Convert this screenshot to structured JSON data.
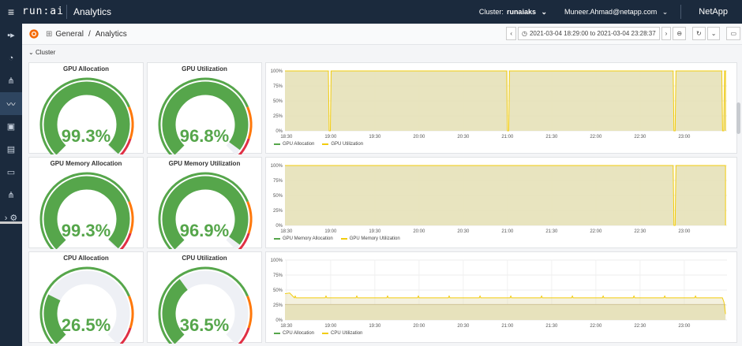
{
  "topbar": {
    "menu_icon": "hamburger-icon",
    "logo": "run:ai",
    "app_title": "Analytics",
    "cluster_label": "Cluster:",
    "cluster_value": "runaiaks",
    "user": "Muneer.Ahmad@netapp.com",
    "brand": "NetApp"
  },
  "sidebar": {
    "items": [
      {
        "icon": "grid-icon"
      },
      {
        "icon": "speedometer-icon"
      },
      {
        "icon": "hierarchy-icon"
      },
      {
        "icon": "analytics-icon"
      },
      {
        "icon": "briefcase-icon"
      },
      {
        "icon": "document-icon"
      },
      {
        "icon": "monitor-icon"
      },
      {
        "icon": "network-icon"
      },
      {
        "icon": "settings-icon"
      }
    ]
  },
  "subbar": {
    "crumb_root": "General",
    "crumb_sep": "/",
    "crumb_page": "Analytics",
    "time_range": "2021-03-04 18:29:00 to 2021-03-04 23:28:37"
  },
  "section_title": "Cluster",
  "gauges": [
    {
      "title": "GPU Allocation",
      "value": "99.3%",
      "fraction": 0.993
    },
    {
      "title": "GPU Utilization",
      "value": "96.8%",
      "fraction": 0.968
    },
    {
      "title": "GPU Memory Allocation",
      "value": "99.3%",
      "fraction": 0.993
    },
    {
      "title": "GPU Memory Utilization",
      "value": "96.9%",
      "fraction": 0.969
    },
    {
      "title": "CPU Allocation",
      "value": "26.5%",
      "fraction": 0.265
    },
    {
      "title": "CPU Utilization",
      "value": "36.5%",
      "fraction": 0.365
    }
  ],
  "colors": {
    "green": "#56a64b",
    "orange": "#ff780a",
    "red": "#e02f44",
    "fill": "#e6e1b8",
    "line_yellow": "#f2cc0c",
    "track": "#eef0f5"
  },
  "chart_data": [
    {
      "type": "area",
      "yticks": [
        "100%",
        "75%",
        "50%",
        "25%",
        "0%"
      ],
      "ylim": [
        0,
        100
      ],
      "xticks": [
        "18:30",
        "19:00",
        "19:30",
        "20:00",
        "20:30",
        "21:00",
        "21:30",
        "22:00",
        "22:30",
        "23:00"
      ],
      "series": [
        {
          "name": "GPU Allocation",
          "color": "#56a64b"
        },
        {
          "name": "GPU Utilization",
          "color": "#f2cc0c"
        }
      ],
      "level": 100,
      "dips": [
        "18:59",
        "21:00",
        "22:53",
        "23:26"
      ]
    },
    {
      "type": "area",
      "yticks": [
        "100%",
        "75%",
        "50%",
        "25%",
        "0%"
      ],
      "ylim": [
        0,
        100
      ],
      "xticks": [
        "18:30",
        "19:00",
        "19:30",
        "20:00",
        "20:30",
        "21:00",
        "21:30",
        "22:00",
        "22:30",
        "23:00"
      ],
      "series": [
        {
          "name": "GPU Memory Allocation",
          "color": "#56a64b"
        },
        {
          "name": "GPU Memory Utilization",
          "color": "#f2cc0c"
        }
      ],
      "level": 100,
      "dips": [
        "22:53"
      ]
    },
    {
      "type": "area",
      "yticks": [
        "100%",
        "75%",
        "50%",
        "25%",
        "0%"
      ],
      "ylim": [
        0,
        100
      ],
      "xticks": [
        "18:30",
        "19:00",
        "19:30",
        "20:00",
        "20:30",
        "21:00",
        "21:30",
        "22:00",
        "22:30",
        "23:00"
      ],
      "series": [
        {
          "name": "CPU Allocation",
          "color": "#56a64b"
        },
        {
          "name": "CPU Utilization",
          "color": "#f2cc0c"
        }
      ],
      "level": 37,
      "level_low": 26,
      "dips": []
    }
  ]
}
